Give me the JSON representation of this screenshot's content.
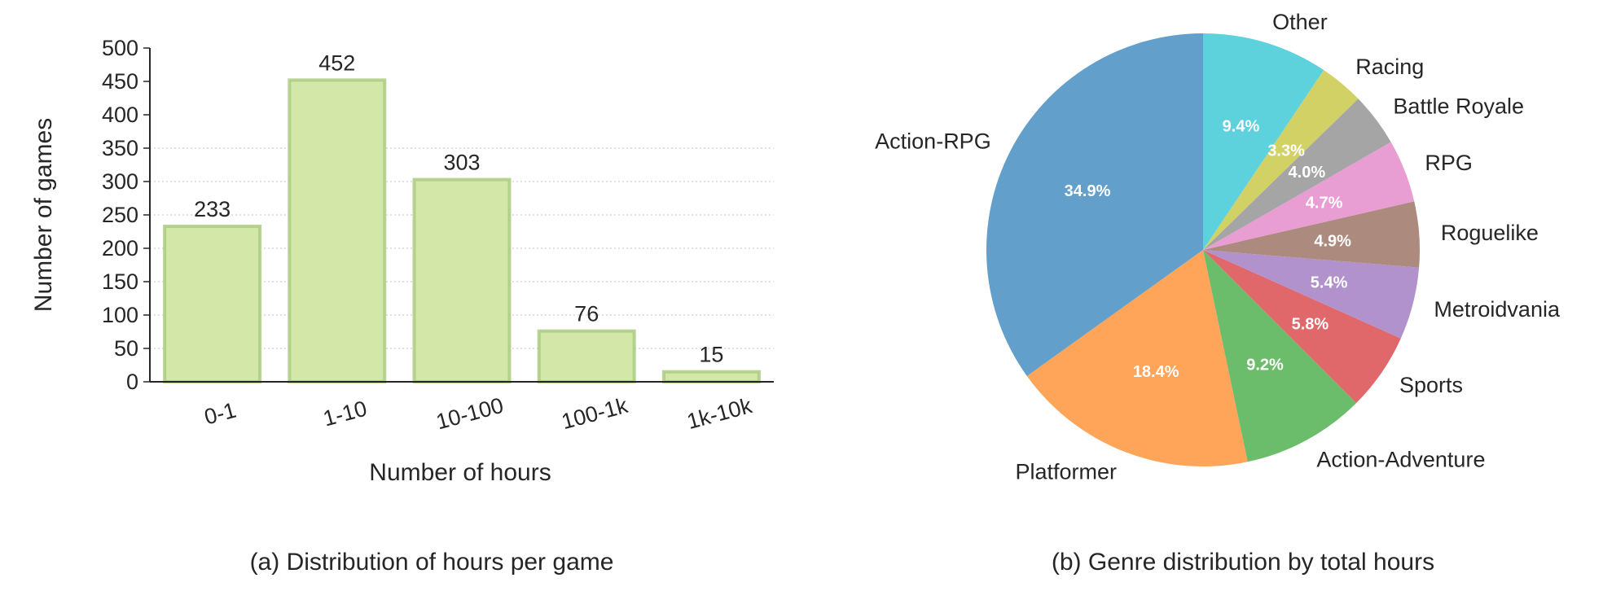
{
  "chart_data": [
    {
      "type": "bar",
      "caption": "(a) Distribution of hours per game",
      "xlabel": "Number of hours",
      "ylabel": "Number of games",
      "categories": [
        "0-1",
        "1-10",
        "10-100",
        "100-1k",
        "1k-10k"
      ],
      "values": [
        233,
        452,
        303,
        76,
        15
      ],
      "ylim": [
        0,
        500
      ],
      "yticks": [
        0,
        50,
        100,
        150,
        200,
        250,
        300,
        350,
        400,
        450,
        500
      ],
      "grid": "horizontal dotted",
      "colors": {
        "fill": "#d3e8a8",
        "edge": "#a8c97c"
      }
    },
    {
      "type": "pie",
      "caption": "(b) Genre distribution by total hours",
      "start_angle_deg": 90,
      "direction": "counterclockwise",
      "slices": [
        {
          "label": "Action-RPG",
          "value": 34.9,
          "pct": "34.9%",
          "color": "#629fca"
        },
        {
          "label": "Platformer",
          "value": 18.4,
          "pct": "18.4%",
          "color": "#fea55a"
        },
        {
          "label": "Action-Adventure",
          "value": 9.2,
          "pct": "9.2%",
          "color": "#6bbd6b"
        },
        {
          "label": "Sports",
          "value": 5.8,
          "pct": "5.8%",
          "color": "#e0676a"
        },
        {
          "label": "Metroidvania",
          "value": 5.4,
          "pct": "5.4%",
          "color": "#b192cd"
        },
        {
          "label": "Roguelike",
          "value": 4.9,
          "pct": "4.9%",
          "color": "#ad8a7e"
        },
        {
          "label": "RPG",
          "value": 4.7,
          "pct": "4.7%",
          "color": "#e89ed3"
        },
        {
          "label": "Battle Royale",
          "value": 4.0,
          "pct": "4.0%",
          "color": "#a5a5a5"
        },
        {
          "label": "Racing",
          "value": 3.3,
          "pct": "3.3%",
          "color": "#d1d166"
        },
        {
          "label": "Other",
          "value": 9.4,
          "pct": "9.4%",
          "color": "#5dd2dc"
        }
      ]
    }
  ]
}
